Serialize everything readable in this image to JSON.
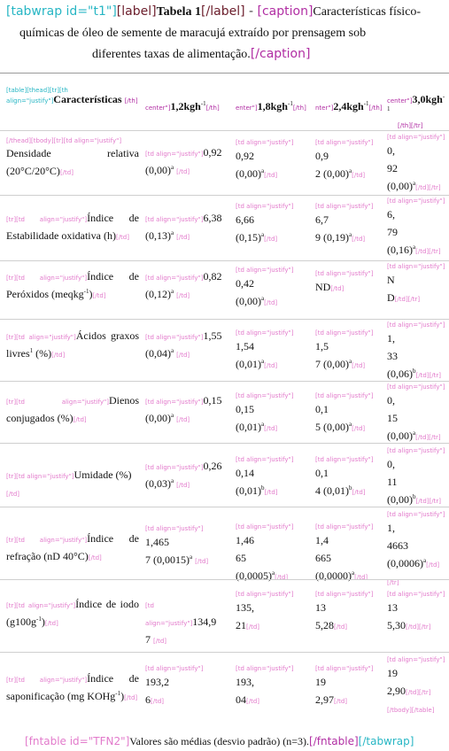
{
  "caption": {
    "open_tag": "[tabwrap id=\"t1\"]",
    "label_open": "[label]",
    "label_text": "Tabela 1",
    "label_close": "[/label]",
    "sep": " - ",
    "caption_open": "[caption]",
    "line1_text": "Características físico-",
    "line2_text": "químicas de óleo de semente de maracujá extraído por prensagem sob",
    "line3_text": "diferentes taxas de alimentação.",
    "caption_close": "[/caption]"
  },
  "header": {
    "col1_tags": "[table][thead][tr][th align=\"justify\"]",
    "col1_text": "Características",
    "col1_close": "[/th]",
    "col2_tag": "center\"]",
    "col2_text": "1,2kgh",
    "col2_sup": "-1",
    "col2_close": "[/th]",
    "col3_tag": "enter\"]",
    "col3_text": "1,8kgh",
    "col3_sup": "-1",
    "col3_close": "[/th]",
    "col4_tag": "nter\"]",
    "col4_text": "2,4kgh",
    "col4_sup": "-1",
    "col4_close": "[/th]",
    "col5_tag": "center\"]",
    "col5_text": "3,0kgh",
    "col5_sup": "-1",
    "col5_close": "[/th][/tr]"
  },
  "rows": [
    {
      "open_tags": "[/thead][tbody][tr][td align=\"justify\"]",
      "name_a": "Densidade relativa",
      "name_b": "(20°C/20°C)",
      "name_close": "[/td]",
      "v1_tag": "[td align=\"justify\"]",
      "v1_a": "0,92",
      "v1_b": "(0,00)",
      "v1_sup": "a",
      "v1_close": "[/td]",
      "v2_tag": "[td align=\"justify\"]",
      "v2_a": "0,92",
      "v2_b": "(0,00)",
      "v2_sup": "a",
      "v2_close": "[/td]",
      "v3_tag": "[td align=\"justify\"]",
      "v3_a": "0,9",
      "v3_b": "2 (0,00)",
      "v3_sup": "a",
      "v3_close": "[/td]",
      "v4_tag": "[td align=\"justify\"]",
      "v4_a": "0,",
      "v4_b": "92",
      "v4_c": "(0,00)",
      "v4_sup": "a",
      "v4_close": "[/td][/tr]"
    },
    {
      "open_tags": "[tr][td align=\"justify\"]",
      "name_a": "Índice de",
      "name_b": "Estabilidade oxidativa (h)",
      "name_close": "[/td]",
      "v1_tag": "[td align=\"justify\"]",
      "v1_a": "6,38",
      "v1_b": "(0,13)",
      "v1_sup": "a",
      "v1_close": "[/td]",
      "v2_tag": "[td align=\"justify\"]",
      "v2_a": "6,66",
      "v2_b": "(0,15)",
      "v2_sup": "a",
      "v2_close": "[/td]",
      "v3_tag": "[td align=\"justify\"]",
      "v3_a": "6,7",
      "v3_b": "9 (0,19)",
      "v3_sup": "a",
      "v3_close": "[/td]",
      "v4_tag": "[td align=\"justify\"]",
      "v4_a": "6,",
      "v4_b": "79",
      "v4_c": "(0,16)",
      "v4_sup": "a",
      "v4_close": "[/td][/tr]"
    },
    {
      "open_tags": "[tr][td align=\"justify\"]",
      "name_a": "Índice de",
      "name_b": "Peróxidos (meqkg",
      "name_sup": "-1",
      "name_b2": ")",
      "name_close": "[/td]",
      "v1_tag": "[td align=\"justify\"]",
      "v1_a": "0,82",
      "v1_b": "(0,12)",
      "v1_sup": "a",
      "v1_close": "[/td]",
      "v2_tag": "[td align=\"justify\"]",
      "v2_a": "0,42",
      "v2_b": "(0,00)",
      "v2_sup": "a",
      "v2_close": "[/td]",
      "v3_tag": "[td align=\"justify\"]",
      "v3_a": "ND",
      "v3_close": "[/td]",
      "v4_tag": "[td align=\"justify\"]",
      "v4_a": "N",
      "v4_b": "D",
      "v4_close": "[/td][/tr]"
    },
    {
      "open_tags": "[tr][td align=\"justify\"]",
      "name_a": "Ácidos graxos",
      "name_b": "livres",
      "name_sup": "1",
      "name_b2": " (%)",
      "name_close": "[/td]",
      "v1_tag": "[td align=\"justify\"]",
      "v1_a": "1,55",
      "v1_b": "(0,04)",
      "v1_sup": "a",
      "v1_close": "[/td]",
      "v2_tag": "[td align=\"justify\"]",
      "v2_a": "1,54",
      "v2_b": "(0,01)",
      "v2_sup": "a",
      "v2_close": "[/td]",
      "v3_tag": "[td align=\"justify\"]",
      "v3_a": "1,5",
      "v3_b": "7 (0,00)",
      "v3_sup": "a",
      "v3_close": "[/td]",
      "v4_tag": "[td align=\"justify\"]",
      "v4_a": "1,",
      "v4_b": "33",
      "v4_c": "(0,06)",
      "v4_sup": "b",
      "v4_close": "[/td][/tr]"
    },
    {
      "open_tags": "[tr][td align=\"justify\"]",
      "name_a": "Dienos",
      "name_b": "conjugados (%)",
      "name_close": "[/td]",
      "v1_tag": "[td align=\"justify\"]",
      "v1_a": "0,15",
      "v1_b": "(0,00)",
      "v1_sup": "a",
      "v1_close": "[/td]",
      "v2_tag": "[td align=\"justify\"]",
      "v2_a": "0,15",
      "v2_b": "(0,01)",
      "v2_sup": "a",
      "v2_close": "[/td]",
      "v3_tag": "[td align=\"justify\"]",
      "v3_a": "0,1",
      "v3_b": "5 (0,00)",
      "v3_sup": "a",
      "v3_close": "[/td]",
      "v4_tag": "[td align=\"justify\"]",
      "v4_a": "0,",
      "v4_b": "15",
      "v4_c": "(0,00)",
      "v4_sup": "a",
      "v4_close": "[/td][/tr]"
    },
    {
      "open_tags": "[tr][td align=\"justify\"]",
      "name_a": "Umidade (%)",
      "name_close": "[/td]",
      "v1_tag": "[td align=\"justify\"]",
      "v1_a": "0,26",
      "v1_b": "(0,03)",
      "v1_sup": "a",
      "v1_close": "[/td]",
      "v2_tag": "[td align=\"justify\"]",
      "v2_a": "0,14",
      "v2_b": "(0,01)",
      "v2_sup": "b",
      "v2_close": "[/td]",
      "v3_tag": "[td align=\"justify\"]",
      "v3_a": "0,1",
      "v3_b": "4 (0,01)",
      "v3_sup": "b",
      "v3_close": "[/td]",
      "v4_tag": "[td align=\"justify\"]",
      "v4_a": "0,",
      "v4_b": "11",
      "v4_c": "(0,00)",
      "v4_sup": "b",
      "v4_close": "[/td][/tr]"
    },
    {
      "open_tags": "[tr][td align=\"justify\"]",
      "name_a": "Índice de",
      "name_b": "refração (nD 40°C)",
      "name_close": "[/td]",
      "v1_tag": "[td align=\"justify\"]",
      "v1_a": "1,465",
      "v1_b": "7 (0,0015)",
      "v1_sup": "a",
      "v1_close": "[/td]",
      "v2_tag": "[td align=\"justify\"]",
      "v2_a": "1,46",
      "v2_b": "65",
      "v2_c": "(0,0005)",
      "v2_sup": "a",
      "v2_close": "[/td]",
      "v3_tag": "[td align=\"justify\"]",
      "v3_a": "1,4",
      "v3_b": "665",
      "v3_c": "(0,0000)",
      "v3_sup": "a",
      "v3_close": "[/td]",
      "v4_tag": "[td align=\"justify\"]",
      "v4_a": "1,",
      "v4_b": "4663",
      "v4_c": "(0,0006)",
      "v4_sup": "a",
      "v4_close": "[/td][/tr]"
    },
    {
      "open_tags": "[tr][td align=\"justify\"]",
      "name_a": "Índice de iodo",
      "name_b": "(g100g",
      "name_sup": "-1",
      "name_b2": ")",
      "name_close": "[/td]",
      "v1_tag": "[td align=\"justify\"]",
      "v1_a": "134,9",
      "v1_b": "7",
      "v1_close": "[/td]",
      "v2_tag": "[td align=\"justify\"]",
      "v2_a": "135,",
      "v2_b": "21",
      "v2_close": "[/td]",
      "v3_tag": "[td align=\"justify\"]",
      "v3_a": "13",
      "v3_b": "5,28",
      "v3_close": "[/td]",
      "v4_tag": "[td align=\"justify\"]",
      "v4_a": "13",
      "v4_b": "5,30",
      "v4_close": "[/td][/tr]"
    },
    {
      "open_tags": "[tr][td align=\"justify\"]",
      "name_a": "Índice de",
      "name_b": "saponificação (mg KOHg",
      "name_sup": "-1",
      "name_b2": ")",
      "name_close": "[/td]",
      "v1_tag": "[td align=\"justify\"]",
      "v1_a": "193,2",
      "v1_b": "6",
      "v1_close": "[/td]",
      "v2_tag": "[td align=\"justify\"]",
      "v2_a": "193,",
      "v2_b": "04",
      "v2_close": "[/td]",
      "v3_tag": "[td align=\"justify\"]",
      "v3_a": "19",
      "v3_b": "2,97",
      "v3_close": "[/td]",
      "v4_tag": "[td align=\"justify\"]",
      "v4_a": "19",
      "v4_b": "2,90",
      "v4_close": "[/td][/tr][/tbody][/table]"
    }
  ],
  "footnote": {
    "open_tag": "[fntable id=\"TFN2\"]",
    "text": "Valores são médias (desvio padrão) (n=3).",
    "close_tag": "[/fntable]",
    "wrap_close": "[/tabwrap]"
  }
}
